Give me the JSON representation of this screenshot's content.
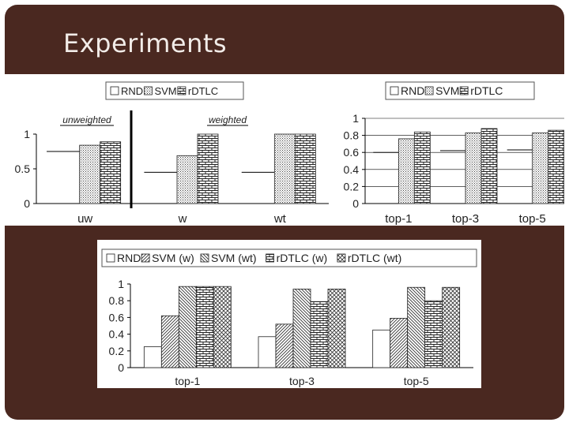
{
  "slide": {
    "title": "Experiments"
  },
  "chart_data": [
    {
      "type": "bar",
      "categories": [
        "uw",
        "w",
        "wt"
      ],
      "series": [
        {
          "name": "RND",
          "values": [
            0.75,
            0.45,
            0.45
          ]
        },
        {
          "name": "SVM",
          "values": [
            0.84,
            0.69,
            1.0
          ]
        },
        {
          "name": "rDTLC",
          "values": [
            0.89,
            1.0,
            1.0
          ]
        }
      ],
      "ylim": [
        0,
        1
      ],
      "yticks": [
        "0",
        "0.5",
        "1"
      ],
      "group_labels": [
        "unweighted",
        "weighted"
      ],
      "legend": "top"
    },
    {
      "type": "bar",
      "categories": [
        "top-1",
        "top-3",
        "top-5"
      ],
      "series": [
        {
          "name": "RND",
          "values": [
            0.6,
            0.62,
            0.63
          ]
        },
        {
          "name": "SVM",
          "values": [
            0.76,
            0.83,
            0.83
          ]
        },
        {
          "name": "rDTLC",
          "values": [
            0.84,
            0.88,
            0.86
          ]
        }
      ],
      "ylim": [
        0,
        1
      ],
      "yticks": [
        "0",
        "0.2",
        "0.4",
        "0.6",
        "0.8",
        "1"
      ],
      "legend": "top"
    },
    {
      "type": "bar",
      "categories": [
        "top-1",
        "top-3",
        "top-5"
      ],
      "series": [
        {
          "name": "RND",
          "values": [
            0.25,
            0.37,
            0.45
          ]
        },
        {
          "name": "SVM (w)",
          "values": [
            0.62,
            0.52,
            0.59
          ]
        },
        {
          "name": "SVM (wt)",
          "values": [
            0.97,
            0.94,
            0.96
          ]
        },
        {
          "name": "rDTLC (w)",
          "values": [
            0.97,
            0.79,
            0.8
          ]
        },
        {
          "name": "rDTLC (wt)",
          "values": [
            0.97,
            0.94,
            0.96
          ]
        }
      ],
      "ylim": [
        0,
        1
      ],
      "yticks": [
        "0",
        "0.2",
        "0.4",
        "0.6",
        "0.8",
        "1"
      ],
      "legend": "top"
    }
  ],
  "colors": {
    "background": "#4a2820",
    "title": "#f2ece8"
  }
}
